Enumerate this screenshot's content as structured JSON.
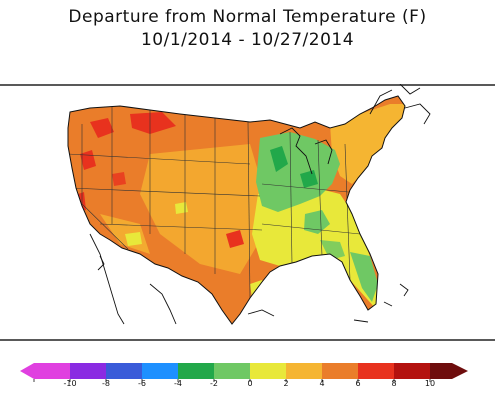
{
  "title": {
    "line1": "Departure from Normal Temperature (F)",
    "line2": "10/1/2014 - 10/27/2014"
  },
  "legend": {
    "ticks": [
      "-10",
      "-8",
      "-6",
      "-4",
      "-2",
      "0",
      "2",
      "4",
      "6",
      "8",
      "10"
    ],
    "colors": [
      "#e040e0",
      "#8a2be2",
      "#3a5bd9",
      "#1e90ff",
      "#22a84a",
      "#6fc864",
      "#e8e83a",
      "#f5b532",
      "#ea7d2a",
      "#e8321e",
      "#b4120f",
      "#6e0d0d"
    ]
  },
  "map": {
    "regions": [
      {
        "name": "west",
        "anomaly": "4 to 6",
        "color": "#ea7d2a"
      },
      {
        "name": "northwest-hotspots",
        "anomaly": "6 to 8",
        "color": "#e8321e"
      },
      {
        "name": "plains",
        "anomaly": "2 to 4",
        "color": "#f5b532"
      },
      {
        "name": "great-lakes",
        "anomaly": "-2 to 0",
        "color": "#6fc864"
      },
      {
        "name": "southeast",
        "anomaly": "0 to 2",
        "color": "#e8e83a"
      },
      {
        "name": "northeast",
        "anomaly": "2 to 4",
        "color": "#f5b532"
      }
    ]
  }
}
